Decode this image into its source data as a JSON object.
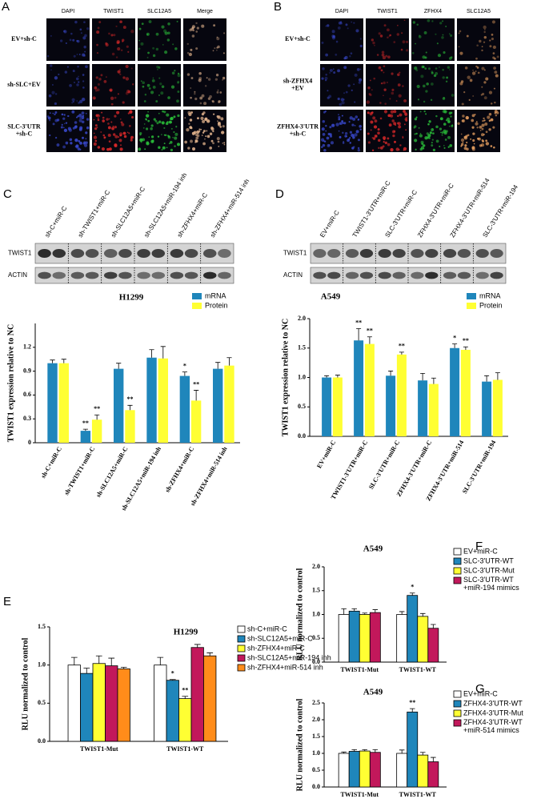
{
  "panels": [
    {
      "letter": "A",
      "columns": [
        "DAPI",
        "TWIST1",
        "SLC12A5",
        "Merge"
      ],
      "rows": [
        "EV+sh-C",
        "sh-SLC+EV",
        "SLC-3'UTR\n+sh-C"
      ]
    },
    {
      "letter": "B",
      "columns": [
        "DAPI",
        "TWIST1",
        "ZFHX4",
        "SLC12A5"
      ],
      "rows": [
        "EV+sh-C",
        "sh-ZFHX4\n+EV",
        "ZFHX4-3'UTR\n+sh-C"
      ]
    }
  ],
  "chart_data": [
    {
      "type": "bar",
      "panel": "C",
      "title": "H1299",
      "ylabel": "TWIST1 expression relative to NC",
      "blot_rows": [
        "TWIST1",
        "ACTIN"
      ],
      "categories": [
        "sh-C+miR-C",
        "sh-TWIST1+miR-C",
        "sh-SLC12A5+miR-C",
        "sh-SLC12A5+miR-194 inh",
        "sh-ZFHX4+miR-C",
        "sh-ZFHX4+miR-514 inh"
      ],
      "series": [
        {
          "name": "mRNA",
          "color": "#1f86bb",
          "values": [
            1.0,
            0.15,
            0.93,
            1.07,
            0.84,
            0.93
          ],
          "errors": [
            0.04,
            0.02,
            0.07,
            0.1,
            0.05,
            0.08
          ]
        },
        {
          "name": "Protein",
          "color": "#ffff33",
          "values": [
            1.0,
            0.29,
            0.41,
            1.06,
            0.53,
            0.97
          ],
          "errors": [
            0.05,
            0.06,
            0.06,
            0.15,
            0.13,
            0.1
          ]
        }
      ],
      "ylim": [
        0,
        1.5
      ],
      "yticks": [
        0,
        0.3,
        0.6,
        0.9,
        1.2
      ],
      "annotations": [
        {
          "text": "**",
          "category": "sh-TWIST1+miR-C",
          "series": "mRNA"
        },
        {
          "text": "**",
          "category": "sh-TWIST1+miR-C",
          "series": "Protein"
        },
        {
          "text": "**",
          "category": "sh-SLC12A5+miR-C",
          "series": "Protein"
        },
        {
          "text": "*",
          "category": "sh-ZFHX4+miR-C",
          "series": "mRNA"
        },
        {
          "text": "**",
          "category": "sh-ZFHX4+miR-C",
          "series": "Protein"
        }
      ]
    },
    {
      "type": "bar",
      "panel": "D",
      "title": "A549",
      "ylabel": "TWIST1 expression relative to NC",
      "blot_rows": [
        "TWIST1",
        "ACTIN"
      ],
      "categories": [
        "EV+miR-C",
        "TWIST1-3'UTR+miR-C",
        "SLC-3'UTR+miR-C",
        "ZFHX4-3'UTR+miR-C",
        "ZFHX4-3'UTR+miR-514",
        "SLC-3'UTR+miR-194"
      ],
      "series": [
        {
          "name": "mRNA",
          "color": "#1f86bb",
          "values": [
            1.0,
            1.63,
            1.03,
            0.95,
            1.5,
            0.93
          ],
          "errors": [
            0.03,
            0.2,
            0.08,
            0.12,
            0.07,
            0.1
          ]
        },
        {
          "name": "Protein",
          "color": "#ffff33",
          "values": [
            1.0,
            1.57,
            1.39,
            0.89,
            1.47,
            0.96
          ],
          "errors": [
            0.04,
            0.12,
            0.04,
            0.1,
            0.05,
            0.12
          ]
        }
      ],
      "ylim": [
        0,
        2.0
      ],
      "yticks": [
        {
          "value": 0,
          "label": "0.0"
        },
        0.5,
        {
          "value": 1,
          "label": "1.0"
        },
        1.5,
        {
          "value": 2,
          "label": "2.0"
        }
      ],
      "annotations": [
        {
          "text": "**",
          "category": "TWIST1-3'UTR+miR-C",
          "series": "mRNA"
        },
        {
          "text": "**",
          "category": "TWIST1-3'UTR+miR-C",
          "series": "Protein"
        },
        {
          "text": "**",
          "category": "SLC-3'UTR+miR-C",
          "series": "Protein"
        },
        {
          "text": "*",
          "category": "ZFHX4-3'UTR+miR-514",
          "series": "mRNA"
        },
        {
          "text": "**",
          "category": "ZFHX4-3'UTR+miR-514",
          "series": "Protein"
        }
      ]
    },
    {
      "type": "bar",
      "panel": "E",
      "title": "H1299",
      "ylabel": "RLU normalized to control",
      "categories": [
        "TWIST1-Mut",
        "TWIST1-WT"
      ],
      "series": [
        {
          "name": "sh-C+miR-C",
          "color": "#ffffff",
          "values": [
            1.0,
            1.0
          ],
          "errors": [
            0.1,
            0.1
          ]
        },
        {
          "name": "sh-SLC12A5+miR-C",
          "color": "#1f86bb",
          "values": [
            0.89,
            0.8
          ],
          "errors": [
            0.07,
            0.01
          ]
        },
        {
          "name": "sh-ZFHX4+miR-C",
          "color": "#ffff33",
          "values": [
            1.02,
            0.56
          ],
          "errors": [
            0.1,
            0.03
          ]
        },
        {
          "name": "sh-SLC12A5+miR-194 inh",
          "color": "#c2185b",
          "values": [
            0.99,
            1.23
          ],
          "errors": [
            0.1,
            0.04
          ]
        },
        {
          "name": "sh-ZFHX4+miR-514 inh",
          "color": "#ff8c1a",
          "values": [
            0.95,
            1.12
          ],
          "errors": [
            0.02,
            0.04
          ]
        }
      ],
      "ylim": [
        0,
        1.5
      ],
      "yticks": [
        {
          "value": 0,
          "label": "0.0"
        },
        0.5,
        {
          "value": 1,
          "label": "1.0"
        },
        1.5
      ],
      "annotations": [
        {
          "text": "*",
          "category": "TWIST1-WT",
          "series": "sh-SLC12A5+miR-C"
        },
        {
          "text": "**",
          "category": "TWIST1-WT",
          "series": "sh-ZFHX4+miR-C"
        }
      ]
    },
    {
      "type": "bar",
      "panel": "F",
      "title": "A549",
      "ylabel": "RLU normalized to control",
      "categories": [
        "TWIST1-Mut",
        "TWIST1-WT"
      ],
      "series": [
        {
          "name": "EV+miR-C",
          "color": "#ffffff",
          "values": [
            1.0,
            1.0
          ],
          "errors": [
            0.12,
            0.06
          ]
        },
        {
          "name": "SLC-3'UTR-WT",
          "color": "#1f86bb",
          "values": [
            1.07,
            1.4
          ],
          "errors": [
            0.05,
            0.05
          ]
        },
        {
          "name": "SLC-3'UTR-Mut",
          "color": "#ffff33",
          "values": [
            1.0,
            0.96
          ],
          "errors": [
            0.03,
            0.06
          ]
        },
        {
          "name": "SLC-3'UTR-WT\n+miR-194 mimics",
          "color": "#c2185b",
          "values": [
            1.04,
            0.71
          ],
          "errors": [
            0.06,
            0.08
          ]
        }
      ],
      "ylim": [
        0,
        2.0
      ],
      "yticks": [
        {
          "value": 0,
          "label": "0.0"
        },
        0.5,
        {
          "value": 1,
          "label": "1.0"
        },
        1.5,
        {
          "value": 2,
          "label": "2.0"
        }
      ],
      "annotations": [
        {
          "text": "*",
          "category": "TWIST1-WT",
          "series": "SLC-3'UTR-WT"
        }
      ]
    },
    {
      "type": "bar",
      "panel": "G",
      "title": "A549",
      "ylabel": "RLU normalized to control",
      "categories": [
        "TWIST1-Mut",
        "TWIST1-WT"
      ],
      "series": [
        {
          "name": "EV+miR-C",
          "color": "#ffffff",
          "values": [
            1.0,
            1.0
          ],
          "errors": [
            0.04,
            0.1
          ]
        },
        {
          "name": "ZFHX4-3'UTR-WT",
          "color": "#1f86bb",
          "values": [
            1.06,
            2.23
          ],
          "errors": [
            0.05,
            0.1
          ]
        },
        {
          "name": "ZFHX4-3'UTR-Mut",
          "color": "#ffff33",
          "values": [
            1.07,
            0.95
          ],
          "errors": [
            0.04,
            0.08
          ]
        },
        {
          "name": "ZFHX4-3'UTR-WT\n+miR-514 mimics",
          "color": "#c2185b",
          "values": [
            1.03,
            0.75
          ],
          "errors": [
            0.08,
            0.13
          ]
        }
      ],
      "ylim": [
        0,
        2.5
      ],
      "yticks": [
        {
          "value": 0,
          "label": "0.0"
        },
        0.5,
        {
          "value": 1,
          "label": "1.0"
        },
        1.5,
        {
          "value": 2,
          "label": "2.0"
        },
        2.5
      ],
      "annotations": [
        {
          "text": "**",
          "category": "TWIST1-WT",
          "series": "ZFHX4-3'UTR-WT"
        }
      ]
    }
  ]
}
